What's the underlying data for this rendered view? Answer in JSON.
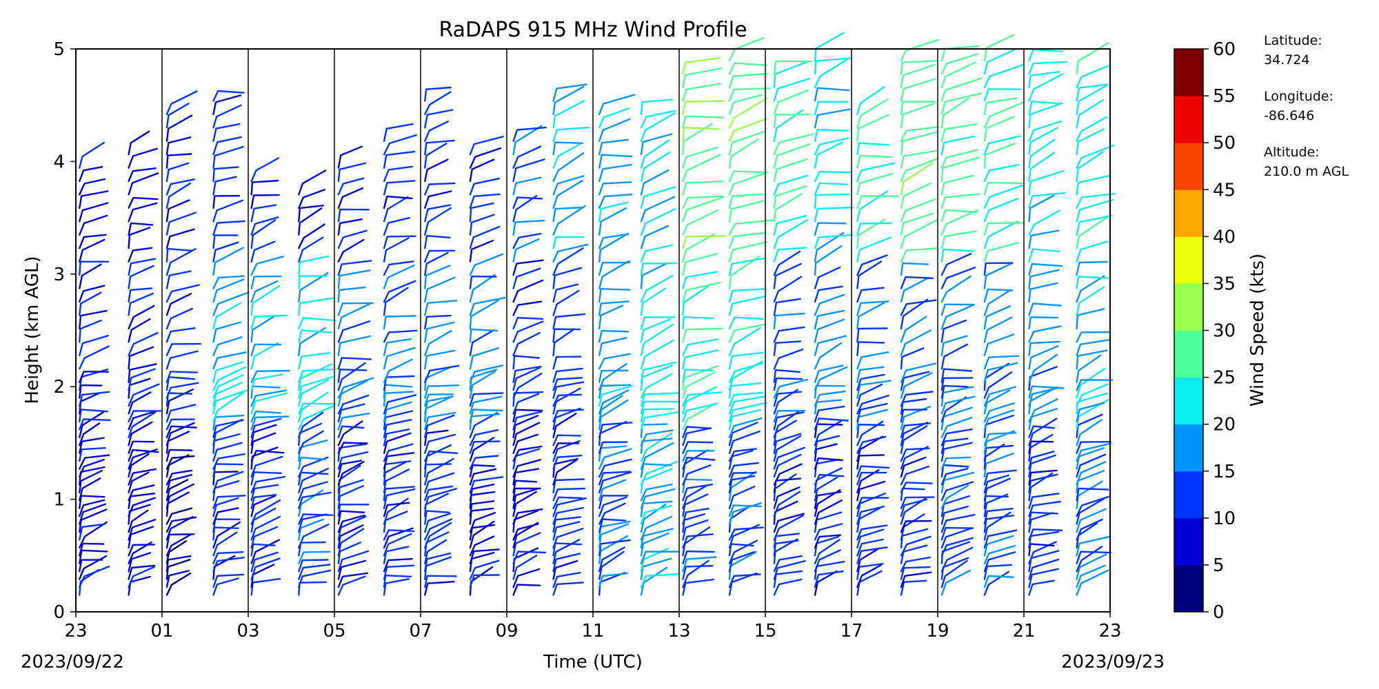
{
  "chart_data": {
    "type": "wind-barb profile",
    "title": "RaDAPS 915 MHz Wind Profile",
    "xlabel": "Time (UTC)",
    "ylabel": "Height (km AGL)",
    "x_ticks": [
      "23",
      "01",
      "03",
      "05",
      "07",
      "09",
      "11",
      "13",
      "15",
      "17",
      "19",
      "21",
      "23"
    ],
    "x_range_hours_utc": [
      "2023-09-22 23:00",
      "2023-09-23 23:00"
    ],
    "start_date_label": "2023/09/22",
    "end_date_label": "2023/09/23",
    "y_ticks": [
      "0",
      "1",
      "2",
      "3",
      "4",
      "5"
    ],
    "ylim": [
      0,
      5
    ],
    "grid": "vertical lines every 2 hours",
    "colorbar": {
      "label": "Wind Speed (kts)",
      "ticks": [
        "0",
        "5",
        "10",
        "15",
        "20",
        "25",
        "30",
        "35",
        "40",
        "45",
        "50",
        "55",
        "60"
      ],
      "range": [
        0,
        60
      ],
      "colors": [
        "#00007f",
        "#0000d6",
        "#0033ff",
        "#0095ff",
        "#0aecee",
        "#4dff99",
        "#99ff4d",
        "#edff0a",
        "#ffa500",
        "#ff4500",
        "#ed0400",
        "#7f0000"
      ]
    },
    "profiles": [
      {
        "time": "23:00",
        "cap_km": 4.0,
        "low_kt": 9,
        "mid_kt": 10,
        "high_kt": 8
      },
      {
        "time": "00:00",
        "cap_km": 4.1,
        "low_kt": 8,
        "mid_kt": 10,
        "high_kt": 8
      },
      {
        "time": "01:00",
        "cap_km": 4.5,
        "low_kt": 7,
        "mid_kt": 11,
        "high_kt": 10
      },
      {
        "time": "02:00",
        "cap_km": 4.6,
        "low_kt": 12,
        "mid_kt": 20,
        "high_kt": 12
      },
      {
        "time": "03:00",
        "cap_km": 3.9,
        "low_kt": 11,
        "mid_kt": 18,
        "high_kt": 9
      },
      {
        "time": "04:00",
        "cap_km": 3.8,
        "low_kt": 13,
        "mid_kt": 22,
        "high_kt": 10
      },
      {
        "time": "05:00",
        "cap_km": 4.0,
        "low_kt": 10,
        "mid_kt": 16,
        "high_kt": 10
      },
      {
        "time": "06:00",
        "cap_km": 4.2,
        "low_kt": 11,
        "mid_kt": 15,
        "high_kt": 11
      },
      {
        "time": "07:00",
        "cap_km": 4.6,
        "low_kt": 12,
        "mid_kt": 17,
        "high_kt": 11
      },
      {
        "time": "08:00",
        "cap_km": 4.1,
        "low_kt": 10,
        "mid_kt": 16,
        "high_kt": 12
      },
      {
        "time": "09:00",
        "cap_km": 4.2,
        "low_kt": 9,
        "mid_kt": 12,
        "high_kt": 15
      },
      {
        "time": "10:00",
        "cap_km": 4.6,
        "low_kt": 12,
        "mid_kt": 13,
        "high_kt": 18
      },
      {
        "time": "11:00",
        "cap_km": 4.5,
        "low_kt": 13,
        "mid_kt": 18,
        "high_kt": 19
      },
      {
        "time": "12:00",
        "cap_km": 4.5,
        "low_kt": 18,
        "mid_kt": 22,
        "high_kt": 20
      },
      {
        "time": "13:00",
        "cap_km": 4.8,
        "low_kt": 13,
        "mid_kt": 24,
        "high_kt": 30
      },
      {
        "time": "14:00",
        "cap_km": 5.0,
        "low_kt": 13,
        "mid_kt": 23,
        "high_kt": 28
      },
      {
        "time": "15:00",
        "cap_km": 4.8,
        "low_kt": 12,
        "mid_kt": 14,
        "high_kt": 25
      },
      {
        "time": "16:00",
        "cap_km": 4.9,
        "low_kt": 11,
        "mid_kt": 16,
        "high_kt": 22
      },
      {
        "time": "17:00",
        "cap_km": 4.5,
        "low_kt": 12,
        "mid_kt": 15,
        "high_kt": 25
      },
      {
        "time": "18:00",
        "cap_km": 5.0,
        "low_kt": 12,
        "mid_kt": 14,
        "high_kt": 28
      },
      {
        "time": "19:00",
        "cap_km": 4.9,
        "low_kt": 13,
        "mid_kt": 15,
        "high_kt": 27
      },
      {
        "time": "20:00",
        "cap_km": 4.9,
        "low_kt": 13,
        "mid_kt": 16,
        "high_kt": 25
      },
      {
        "time": "21:00",
        "cap_km": 4.9,
        "low_kt": 12,
        "mid_kt": 17,
        "high_kt": 21
      },
      {
        "time": "22:00",
        "cap_km": 4.8,
        "low_kt": 15,
        "mid_kt": 20,
        "high_kt": 23
      }
    ]
  },
  "site_info": {
    "latitude_label": "Latitude:",
    "latitude": "34.724",
    "longitude_label": "Longitude:",
    "longitude": "-86.646",
    "altitude_label": "Altitude:",
    "altitude": "210.0 m AGL"
  }
}
